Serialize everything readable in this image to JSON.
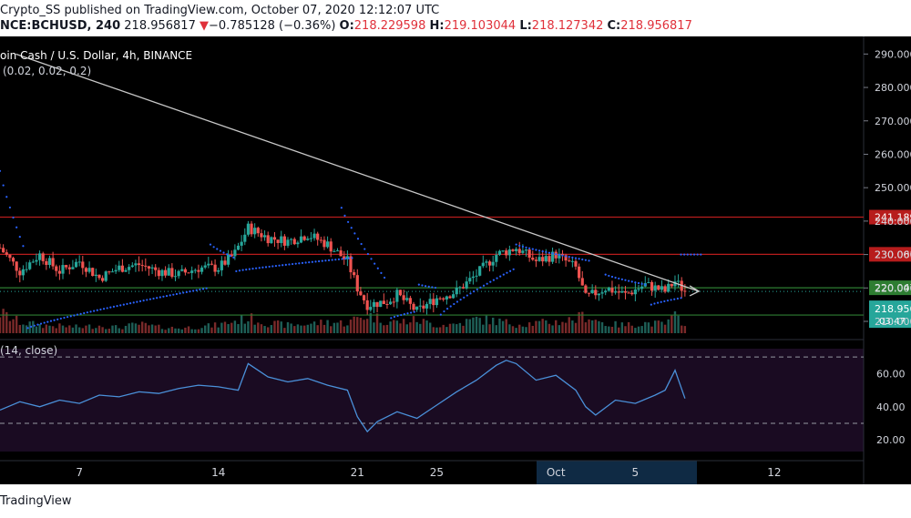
{
  "header": {
    "publisher": "Crypto_SS published on TradingView.com, October 07, 2020 12:12:07 UTC",
    "symbol": "NCE:BCHUSD, 240",
    "last": "218.956817",
    "change_arrow": "▼",
    "change": "−0.785128 (−0.36%)",
    "o_label": "O:",
    "o_value": "218.229598",
    "h_label": "H:",
    "h_value": "219.103044",
    "l_label": "L:",
    "l_value": "218.127342",
    "c_label": "C:",
    "c_value": "218.956817"
  },
  "footer": {
    "brand": "TradingView"
  },
  "colors": {
    "up": "#26a69a",
    "down": "#ef5350",
    "sar": "#2962ff",
    "rsi": "#4a90d9",
    "resistance": "#b71c1c",
    "support": "#2e7d32",
    "trendline": "#c8c8c8"
  },
  "chart_data": [
    {
      "type": "candlestick",
      "title": "oin Cash / U.S. Dollar, 4h, BINANCE",
      "indicator": "(0.02, 0.02, 0.2)",
      "ylim": [
        207,
        292
      ],
      "y_ticks": [
        "290.000",
        "280.000",
        "270.000",
        "260.000",
        "250.000",
        "240.000",
        "230.000",
        "220.000",
        "210.000"
      ],
      "y_tick_values": [
        290,
        280,
        270,
        260,
        250,
        240,
        230,
        220,
        210
      ],
      "x_ticks": [
        {
          "label": "7",
          "day": 7
        },
        {
          "label": "14",
          "day": 14
        },
        {
          "label": "21",
          "day": 21
        },
        {
          "label": "25",
          "day": 25
        },
        {
          "label": "Oct",
          "day": 31
        },
        {
          "label": "5",
          "day": 35
        },
        {
          "label": "12",
          "day": 42
        }
      ],
      "x_range_days": [
        3,
        46.5
      ],
      "last_day": 37.5,
      "horizontal_levels": [
        {
          "value": 241.189,
          "label": "241.189",
          "kind": "resistance"
        },
        {
          "value": 230.061,
          "label": "230.061",
          "kind": "resistance"
        },
        {
          "value": 220.047,
          "label": "220.047",
          "kind": "support"
        },
        {
          "value": 211.886,
          "label": "211.886",
          "kind": "support"
        }
      ],
      "last_price": {
        "value": 218.956,
        "label": "218.956",
        "countdown": "03:47"
      },
      "trendline": {
        "start": {
          "day": 3.8,
          "value": 290
        },
        "end": {
          "day": 38.2,
          "value": 219
        }
      },
      "price_path": [
        {
          "day": 3.0,
          "price": 232
        },
        {
          "day": 4.0,
          "price": 225
        },
        {
          "day": 5.0,
          "price": 230
        },
        {
          "day": 6.0,
          "price": 225
        },
        {
          "day": 7.0,
          "price": 228
        },
        {
          "day": 8.0,
          "price": 223
        },
        {
          "day": 9.0,
          "price": 226
        },
        {
          "day": 10.0,
          "price": 227
        },
        {
          "day": 11.0,
          "price": 225
        },
        {
          "day": 12.0,
          "price": 224
        },
        {
          "day": 13.0,
          "price": 226
        },
        {
          "day": 14.0,
          "price": 226
        },
        {
          "day": 14.8,
          "price": 230
        },
        {
          "day": 15.5,
          "price": 238
        },
        {
          "day": 16.5,
          "price": 235
        },
        {
          "day": 17.5,
          "price": 234
        },
        {
          "day": 18.5,
          "price": 236
        },
        {
          "day": 19.5,
          "price": 233
        },
        {
          "day": 20.5,
          "price": 228
        },
        {
          "day": 21.0,
          "price": 220
        },
        {
          "day": 21.5,
          "price": 215
        },
        {
          "day": 22.5,
          "price": 216
        },
        {
          "day": 23.0,
          "price": 218
        },
        {
          "day": 24.0,
          "price": 213
        },
        {
          "day": 25.0,
          "price": 217
        },
        {
          "day": 26.0,
          "price": 219
        },
        {
          "day": 27.0,
          "price": 224
        },
        {
          "day": 28.0,
          "price": 230
        },
        {
          "day": 29.0,
          "price": 232
        },
        {
          "day": 30.0,
          "price": 228
        },
        {
          "day": 31.0,
          "price": 230
        },
        {
          "day": 32.0,
          "price": 226
        },
        {
          "day": 32.5,
          "price": 217
        },
        {
          "day": 33.5,
          "price": 220
        },
        {
          "day": 34.5,
          "price": 218
        },
        {
          "day": 35.5,
          "price": 221
        },
        {
          "day": 36.5,
          "price": 219
        },
        {
          "day": 37.0,
          "price": 222
        },
        {
          "day": 37.5,
          "price": 219
        }
      ],
      "sar_segments": [
        {
          "from": 3.0,
          "to": 4.2,
          "start": 255,
          "end": 232,
          "side": "above"
        },
        {
          "from": 4.4,
          "to": 13.5,
          "start": 208,
          "end": 220,
          "side": "below"
        },
        {
          "from": 13.6,
          "to": 14.8,
          "start": 233,
          "end": 229,
          "side": "above"
        },
        {
          "from": 14.9,
          "to": 20.8,
          "start": 225,
          "end": 229,
          "side": "below"
        },
        {
          "from": 20.2,
          "to": 22.5,
          "start": 244,
          "end": 222,
          "side": "above"
        },
        {
          "from": 22.7,
          "to": 24.0,
          "start": 211,
          "end": 213,
          "side": "below"
        },
        {
          "from": 24.1,
          "to": 25.0,
          "start": 221,
          "end": 220,
          "side": "above"
        },
        {
          "from": 25.2,
          "to": 29.0,
          "start": 212,
          "end": 226,
          "side": "below"
        },
        {
          "from": 29.0,
          "to": 32.8,
          "start": 233,
          "end": 228,
          "side": "above"
        },
        {
          "from": 33.5,
          "to": 35.5,
          "start": 224,
          "end": 221,
          "side": "above"
        },
        {
          "from": 35.8,
          "to": 37.3,
          "start": 215,
          "end": 217,
          "side": "below"
        },
        {
          "from": 37.3,
          "to": 38.3,
          "start": 230,
          "end": 230,
          "side": "above"
        }
      ]
    },
    {
      "type": "line",
      "title": "(14, close)",
      "ylim": [
        13,
        75
      ],
      "y_ticks": [
        "60.00",
        "40.00",
        "20.00"
      ],
      "y_tick_values": [
        60,
        40,
        20
      ],
      "bands": [
        70,
        30
      ],
      "x": [
        3.0,
        4.0,
        5.0,
        6.0,
        7.0,
        8.0,
        9.0,
        10.0,
        11.0,
        12.0,
        13.0,
        14.0,
        15.0,
        15.5,
        16.5,
        17.5,
        18.5,
        19.5,
        20.5,
        21.0,
        21.5,
        22.0,
        23.0,
        24.0,
        25.0,
        26.0,
        27.0,
        28.0,
        28.5,
        29.0,
        30.0,
        31.0,
        32.0,
        32.5,
        33.0,
        34.0,
        35.0,
        36.0,
        36.5,
        37.0,
        37.5
      ],
      "values": [
        38,
        43,
        40,
        44,
        42,
        47,
        46,
        49,
        48,
        51,
        53,
        52,
        50,
        66,
        58,
        55,
        57,
        53,
        50,
        34,
        25,
        31,
        37,
        33,
        41,
        49,
        56,
        65,
        68,
        66,
        56,
        59,
        50,
        40,
        35,
        44,
        42,
        47,
        50,
        62,
        45
      ]
    },
    {
      "type": "bar",
      "title": "",
      "x": [
        3.0,
        4.0,
        5.0,
        6.0,
        7.0,
        8.0,
        9.0,
        10.0,
        11.0,
        12.0,
        13.0,
        14.0,
        14.8,
        15.5,
        16.5,
        17.5,
        18.5,
        19.5,
        20.5,
        21.0,
        21.5,
        22.5,
        23.0,
        24.0,
        25.0,
        26.0,
        27.0,
        28.0,
        29.0,
        30.0,
        31.0,
        32.0,
        32.5,
        33.5,
        34.5,
        35.5,
        36.5,
        37.0,
        37.5
      ],
      "values": [
        100,
        55,
        40,
        35,
        30,
        38,
        28,
        45,
        30,
        25,
        32,
        40,
        60,
        75,
        50,
        40,
        45,
        55,
        50,
        75,
        90,
        60,
        55,
        65,
        40,
        45,
        70,
        60,
        45,
        50,
        55,
        70,
        90,
        45,
        40,
        50,
        45,
        80,
        55
      ]
    }
  ]
}
